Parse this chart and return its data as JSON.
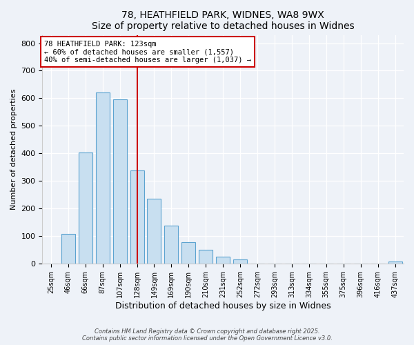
{
  "title1": "78, HEATHFIELD PARK, WIDNES, WA8 9WX",
  "title2": "Size of property relative to detached houses in Widnes",
  "xlabel": "Distribution of detached houses by size in Widnes",
  "ylabel": "Number of detached properties",
  "bar_labels": [
    "25sqm",
    "46sqm",
    "66sqm",
    "87sqm",
    "107sqm",
    "128sqm",
    "149sqm",
    "169sqm",
    "190sqm",
    "210sqm",
    "231sqm",
    "252sqm",
    "272sqm",
    "293sqm",
    "313sqm",
    "334sqm",
    "355sqm",
    "375sqm",
    "396sqm",
    "416sqm",
    "437sqm"
  ],
  "bar_values": [
    0,
    108,
    403,
    620,
    597,
    338,
    237,
    138,
    78,
    50,
    25,
    15,
    0,
    0,
    0,
    0,
    0,
    0,
    0,
    0,
    8
  ],
  "bar_color": "#c8dff0",
  "bar_edge_color": "#5ba3d0",
  "reference_line_x": 5.0,
  "reference_line_color": "#cc0000",
  "annotation_title": "78 HEATHFIELD PARK: 123sqm",
  "annotation_line1": "← 60% of detached houses are smaller (1,557)",
  "annotation_line2": "40% of semi-detached houses are larger (1,037) →",
  "annotation_box_color": "#ffffff",
  "annotation_box_edge": "#cc0000",
  "ylim": [
    0,
    830
  ],
  "yticks": [
    0,
    100,
    200,
    300,
    400,
    500,
    600,
    700,
    800
  ],
  "footnote1": "Contains HM Land Registry data © Crown copyright and database right 2025.",
  "footnote2": "Contains public sector information licensed under the Open Government Licence v3.0.",
  "bg_color": "#eef2f8"
}
